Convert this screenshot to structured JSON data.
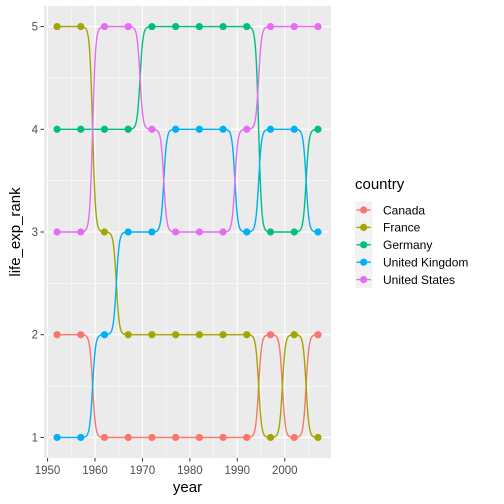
{
  "chart_data": {
    "type": "line",
    "title": "",
    "xlabel": "year",
    "ylabel": "life_exp_rank",
    "xlim": [
      1949.25,
      2009.75
    ],
    "ylim": [
      0.8,
      5.2
    ],
    "xticks": [
      1950,
      1960,
      1970,
      1980,
      1990,
      2000
    ],
    "yticks": [
      1,
      2,
      3,
      4,
      5
    ],
    "grid": true,
    "legend": {
      "title": "country",
      "position": "right"
    },
    "x": [
      1952,
      1957,
      1962,
      1967,
      1972,
      1977,
      1982,
      1987,
      1992,
      1997,
      2002,
      2007
    ],
    "series": [
      {
        "name": "Canada",
        "color": "#F8766D",
        "values": [
          2,
          2,
          1,
          1,
          1,
          1,
          1,
          1,
          1,
          2,
          1,
          2
        ]
      },
      {
        "name": "France",
        "color": "#A3A500",
        "values": [
          5,
          5,
          3,
          2,
          2,
          2,
          2,
          2,
          2,
          1,
          2,
          1
        ]
      },
      {
        "name": "Germany",
        "color": "#00BF7D",
        "values": [
          4,
          4,
          4,
          4,
          5,
          5,
          5,
          5,
          5,
          3,
          3,
          4
        ]
      },
      {
        "name": "United Kingdom",
        "color": "#00B0F6",
        "values": [
          1,
          1,
          2,
          3,
          3,
          4,
          4,
          4,
          3,
          4,
          4,
          3
        ]
      },
      {
        "name": "United States",
        "color": "#E76BF3",
        "values": [
          3,
          3,
          5,
          5,
          4,
          3,
          3,
          3,
          4,
          5,
          5,
          5
        ]
      }
    ]
  }
}
